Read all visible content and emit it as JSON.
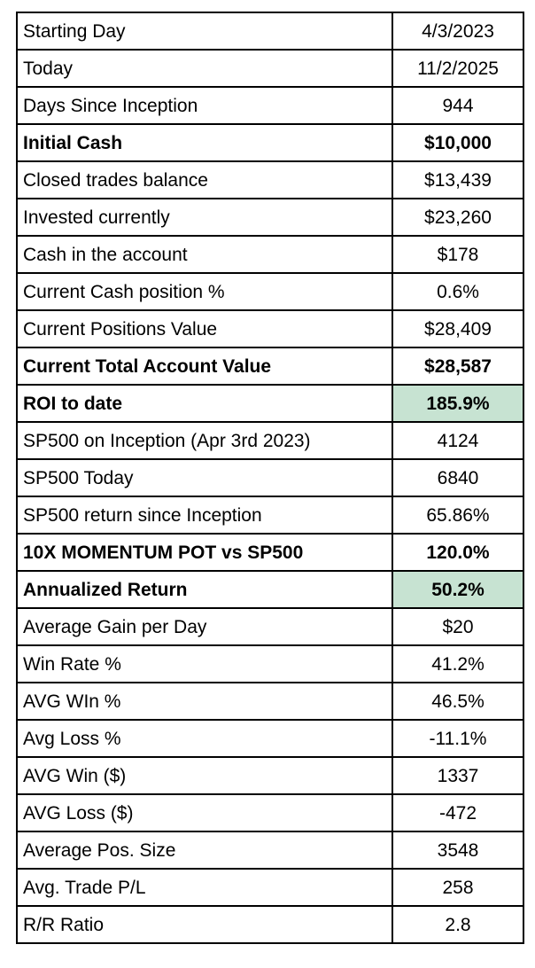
{
  "table": {
    "colors": {
      "highlight": "#c7e3d2",
      "border": "#000000",
      "background": "#ffffff"
    },
    "rows": [
      {
        "label": "Starting Day",
        "value": "4/3/2023",
        "bold": false,
        "highlight": false
      },
      {
        "label": "Today",
        "value": "11/2/2025",
        "bold": false,
        "highlight": false
      },
      {
        "label": "Days Since Inception",
        "value": "944",
        "bold": false,
        "highlight": false
      },
      {
        "label": "Initial Cash",
        "value": "$10,000",
        "bold": true,
        "highlight": false
      },
      {
        "label": "Closed trades balance",
        "value": "$13,439",
        "bold": false,
        "highlight": false
      },
      {
        "label": "Invested currently",
        "value": "$23,260",
        "bold": false,
        "highlight": false
      },
      {
        "label": "Cash in the account",
        "value": "$178",
        "bold": false,
        "highlight": false
      },
      {
        "label": "Current Cash position %",
        "value": "0.6%",
        "bold": false,
        "highlight": false
      },
      {
        "label": "Current Positions Value",
        "value": "$28,409",
        "bold": false,
        "highlight": false
      },
      {
        "label": "Current Total Account Value",
        "value": "$28,587",
        "bold": true,
        "highlight": false
      },
      {
        "label": "ROI to date",
        "value": "185.9%",
        "bold": true,
        "highlight": true
      },
      {
        "label": "SP500 on Inception (Apr 3rd 2023)",
        "value": "4124",
        "bold": false,
        "highlight": false
      },
      {
        "label": "SP500 Today",
        "value": "6840",
        "bold": false,
        "highlight": false
      },
      {
        "label": "SP500 return since Inception",
        "value": "65.86%",
        "bold": false,
        "highlight": false
      },
      {
        "label": "10X MOMENTUM POT vs SP500",
        "value": "120.0%",
        "bold": true,
        "highlight": false
      },
      {
        "label": "Annualized Return",
        "value": "50.2%",
        "bold": true,
        "highlight": true
      },
      {
        "label": "Average Gain per Day",
        "value": "$20",
        "bold": false,
        "highlight": false
      },
      {
        "label": "Win Rate %",
        "value": "41.2%",
        "bold": false,
        "highlight": false
      },
      {
        "label": "AVG WIn %",
        "value": "46.5%",
        "bold": false,
        "highlight": false
      },
      {
        "label": "Avg Loss %",
        "value": "-11.1%",
        "bold": false,
        "highlight": false
      },
      {
        "label": "AVG Win ($)",
        "value": "1337",
        "bold": false,
        "highlight": false
      },
      {
        "label": "AVG Loss ($)",
        "value": "-472",
        "bold": false,
        "highlight": false
      },
      {
        "label": "Average Pos. Size",
        "value": "3548",
        "bold": false,
        "highlight": false
      },
      {
        "label": "Avg. Trade P/L",
        "value": "258",
        "bold": false,
        "highlight": false
      },
      {
        "label": "R/R Ratio",
        "value": "2.8",
        "bold": false,
        "highlight": false
      }
    ]
  }
}
